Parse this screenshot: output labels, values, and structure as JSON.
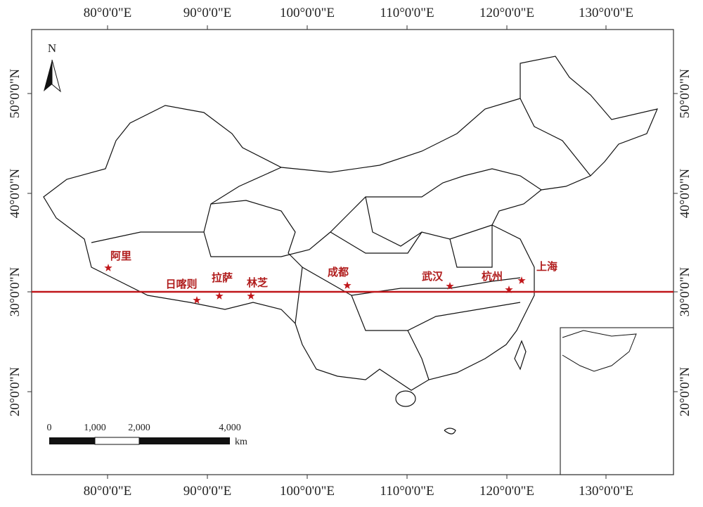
{
  "map": {
    "top_labels": [
      "80°0'0\"E",
      "90°0'0\"E",
      "100°0'0\"E",
      "110°0'0\"E",
      "120°0'0\"E",
      "130°0'0\"E"
    ],
    "bottom_labels": [
      "80°0'0\"E",
      "90°0'0\"E",
      "100°0'0\"E",
      "110°0'0\"E",
      "120°0'0\"E",
      "130°0'0\"E"
    ],
    "left_labels": [
      "50°0'0\"N",
      "40°0'0\"N",
      "30°0'0\"N",
      "20°0'0\"N"
    ],
    "right_labels": [
      "50°0'0\"N",
      "40°0'0\"N",
      "30°0'0\"N",
      "20°0'0\"N"
    ],
    "north_label": "N",
    "cities": [
      "阿里",
      "日喀则",
      "拉萨",
      "林芝",
      "成都",
      "武汉",
      "杭州",
      "上海"
    ],
    "scale_bar": {
      "labels": [
        "0",
        "1,000",
        "2,000",
        "4,000"
      ],
      "unit": "km"
    }
  }
}
